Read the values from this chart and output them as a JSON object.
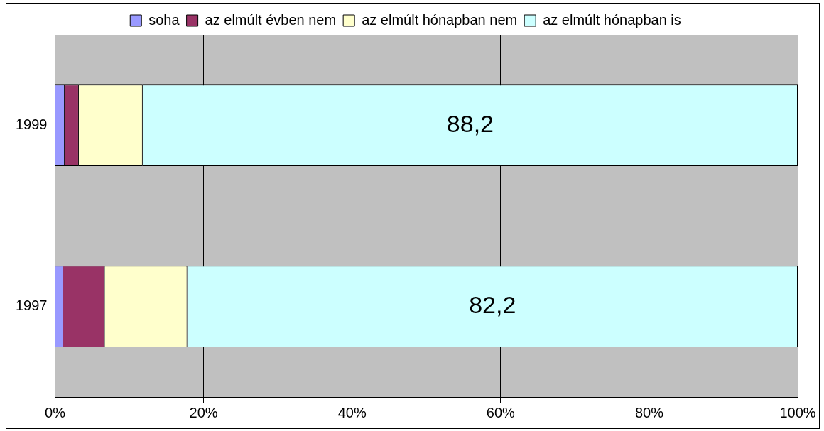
{
  "chart_data": {
    "type": "bar",
    "orientation": "horizontal",
    "stacked": true,
    "categories": [
      "1999",
      "1997"
    ],
    "series": [
      {
        "name": "soha",
        "color": "#9999ff",
        "values": [
          1.3,
          1.1
        ]
      },
      {
        "name": "az elmúlt évben nem",
        "color": "#993366",
        "values": [
          1.9,
          5.6
        ]
      },
      {
        "name": "az elmúlt hónapban nem",
        "color": "#ffffcc",
        "values": [
          8.6,
          11.1
        ]
      },
      {
        "name": "az elmúlt hónapban is",
        "color": "#ccffff",
        "values": [
          88.2,
          82.2
        ],
        "value_labels": [
          "88,2",
          "82,2"
        ]
      }
    ],
    "xlim": [
      0,
      100
    ],
    "xticks": [
      {
        "value": 0,
        "label": "0%"
      },
      {
        "value": 20,
        "label": "20%"
      },
      {
        "value": 40,
        "label": "40%"
      },
      {
        "value": 60,
        "label": "60%"
      },
      {
        "value": 80,
        "label": "80%"
      },
      {
        "value": 100,
        "label": "100%"
      }
    ],
    "grid": "x",
    "legend": "top"
  }
}
